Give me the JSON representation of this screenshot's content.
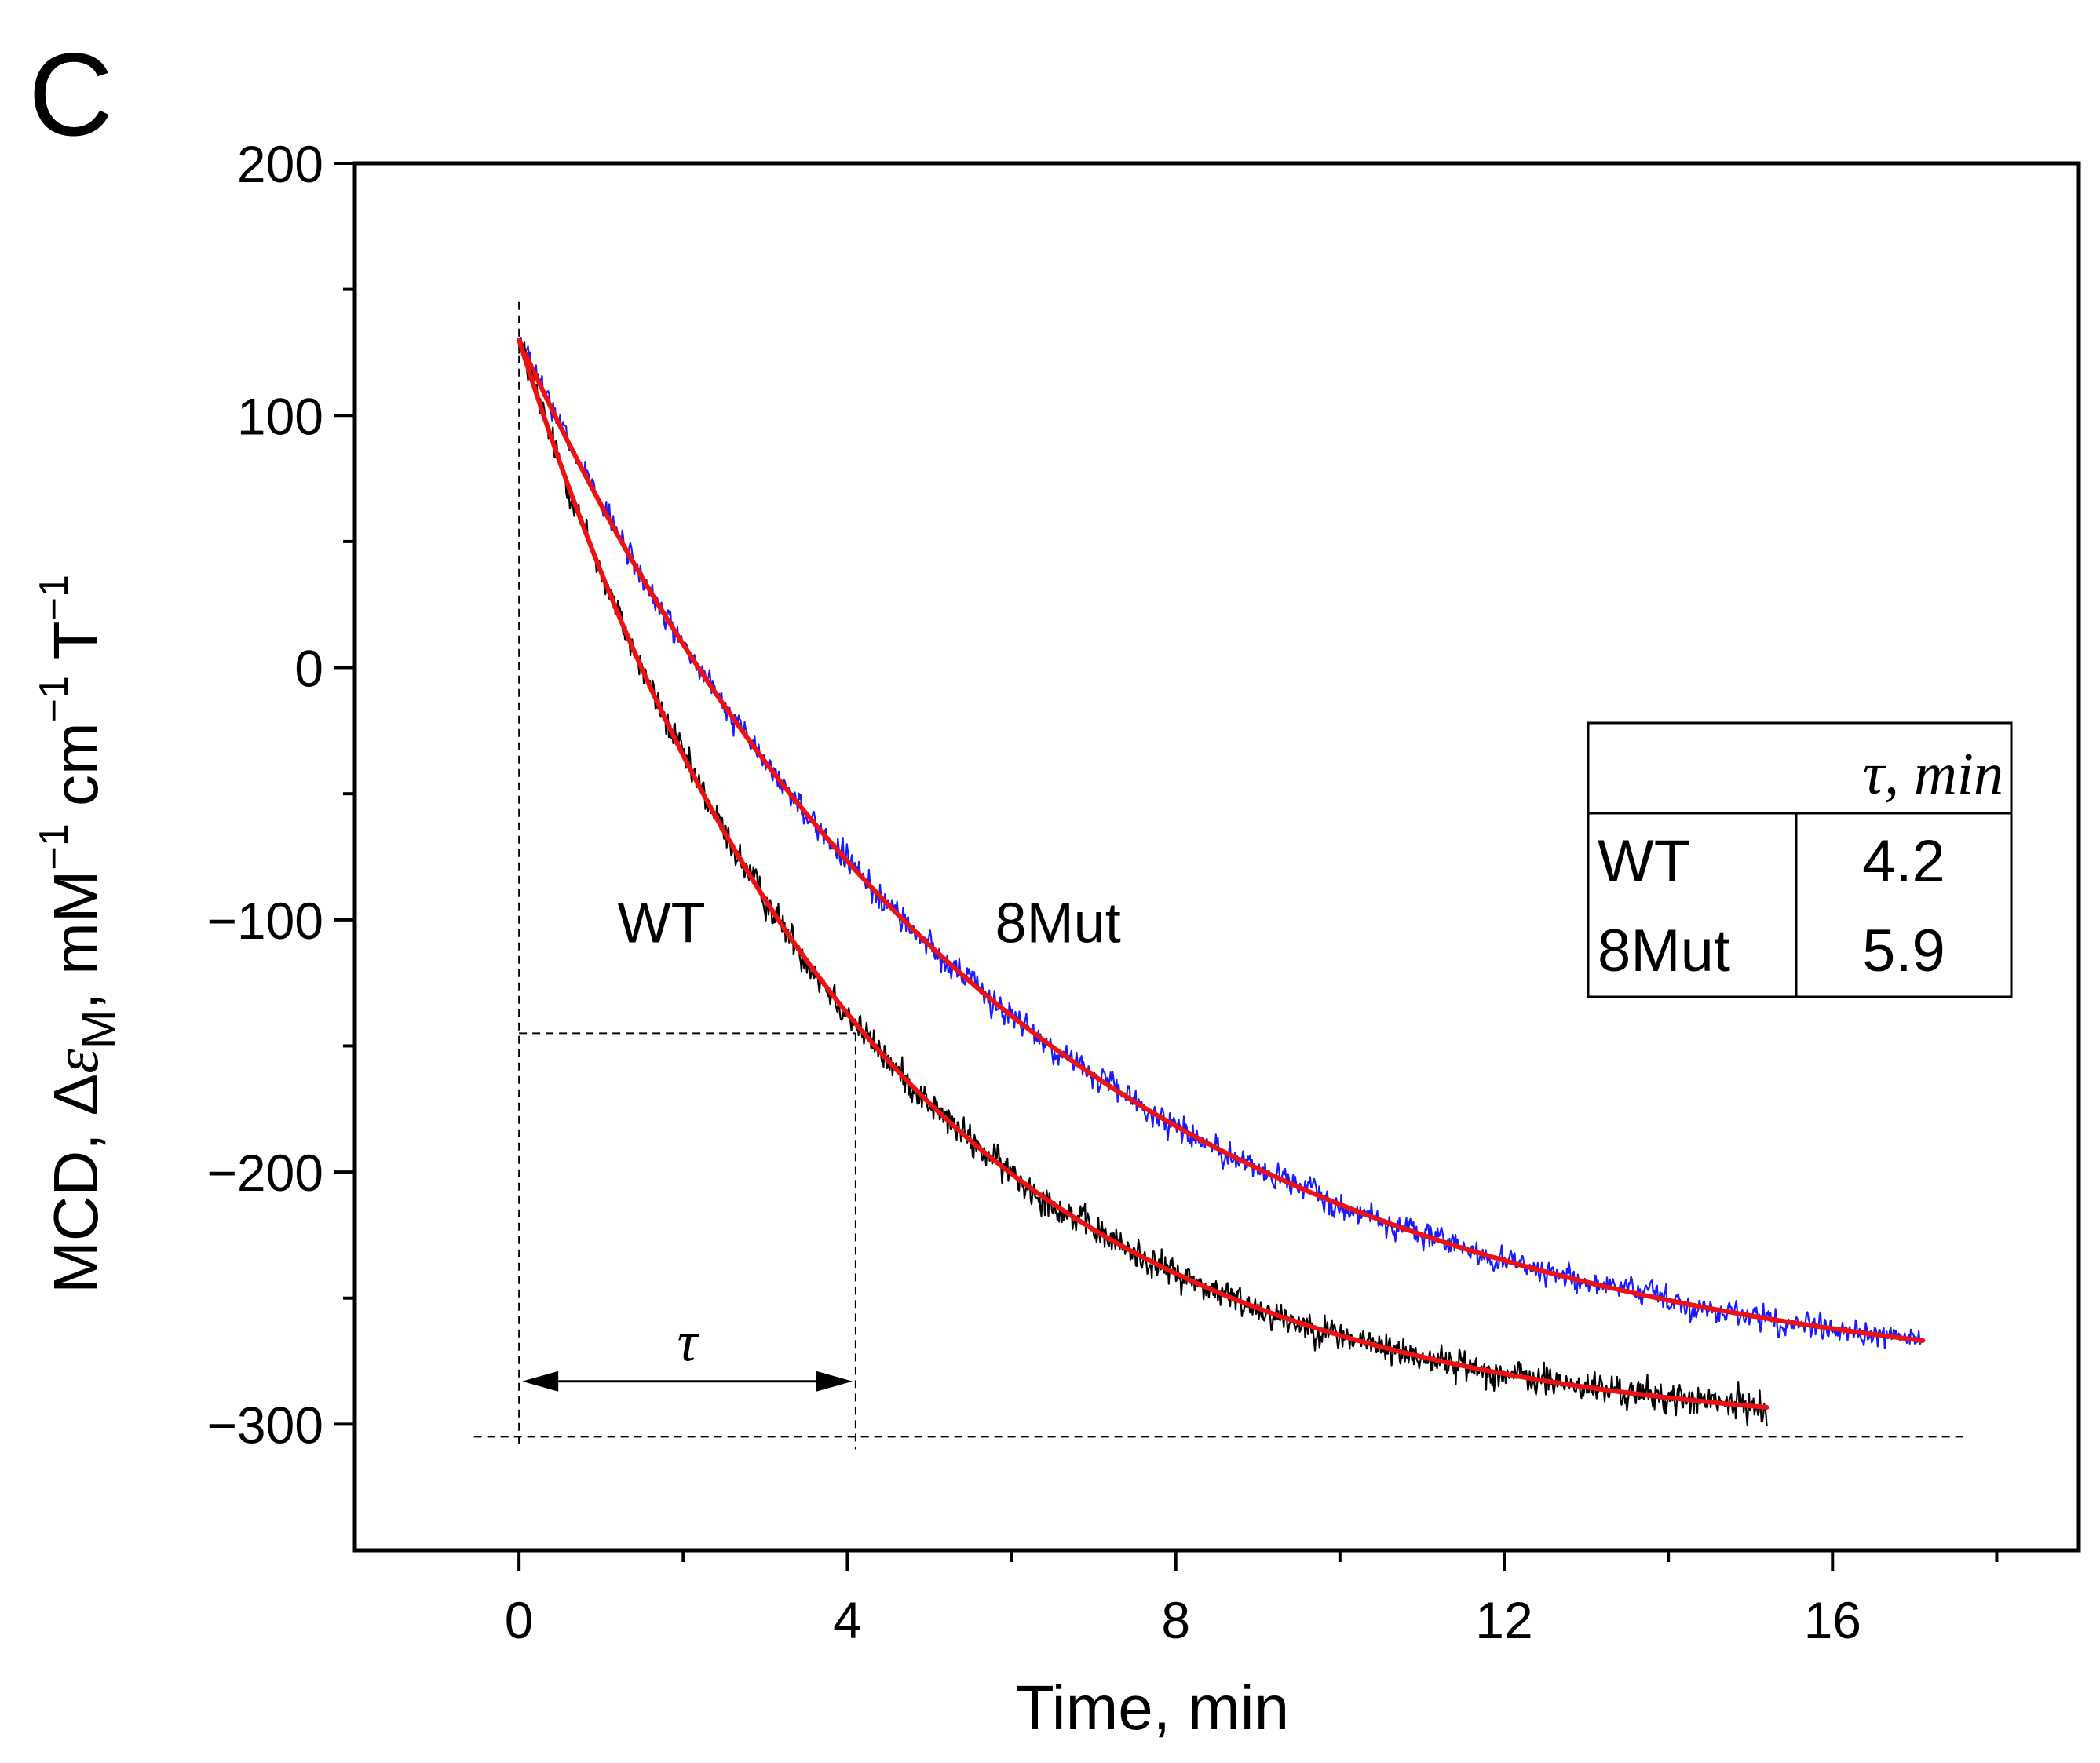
{
  "panel_label": "C",
  "chart_data": {
    "type": "line",
    "xlabel": "Time, min",
    "ylabel": {
      "prefix": "MCD, Δ",
      "epsilon": "ε",
      "sub": "M",
      "units_pre": ", mM",
      "sup1": "−1",
      "units_mid": " cm",
      "sup2": "−1",
      "units_post": " T",
      "sup3": "−1"
    },
    "xlim": [
      -2,
      19
    ],
    "ylim": [
      -350,
      200
    ],
    "xticks": [
      0,
      4,
      8,
      12,
      16
    ],
    "xtick_labels": [
      "0",
      "4",
      "8",
      "12",
      "16"
    ],
    "xminor": [
      2,
      6,
      10,
      14,
      18
    ],
    "yticks": [
      200,
      100,
      0,
      -100,
      -200,
      -300
    ],
    "ytick_labels": [
      "200",
      "100",
      "0",
      "−100",
      "−200",
      "−300"
    ],
    "yminor": [
      150,
      50,
      -50,
      -150,
      -250
    ],
    "series": [
      {
        "name": "WT",
        "label": "WT",
        "color": "#000000",
        "fit_color": "#ee1111",
        "t_start": 0,
        "t_end": 15.2,
        "y0": 130,
        "y_inf": -305,
        "tau": 4.2,
        "noise": 7
      },
      {
        "name": "8Mut",
        "label": "8Mut",
        "color": "#1a1aff",
        "fit_color": "#ee1111",
        "t_start": 0,
        "t_end": 17.1,
        "y0": 130,
        "y_inf": -290,
        "tau": 5.9,
        "noise": 6
      }
    ],
    "guides": {
      "vertical_at_t": [
        0,
        4.1
      ],
      "horizontal_at_y": [
        -145,
        -305
      ],
      "tau_arrow_y": -283,
      "tau_label": "τ"
    },
    "table": {
      "header": "τ, min",
      "rows": [
        {
          "label": "WT",
          "value": "4.2"
        },
        {
          "label": "8Mut",
          "value": "5.9"
        }
      ]
    }
  }
}
